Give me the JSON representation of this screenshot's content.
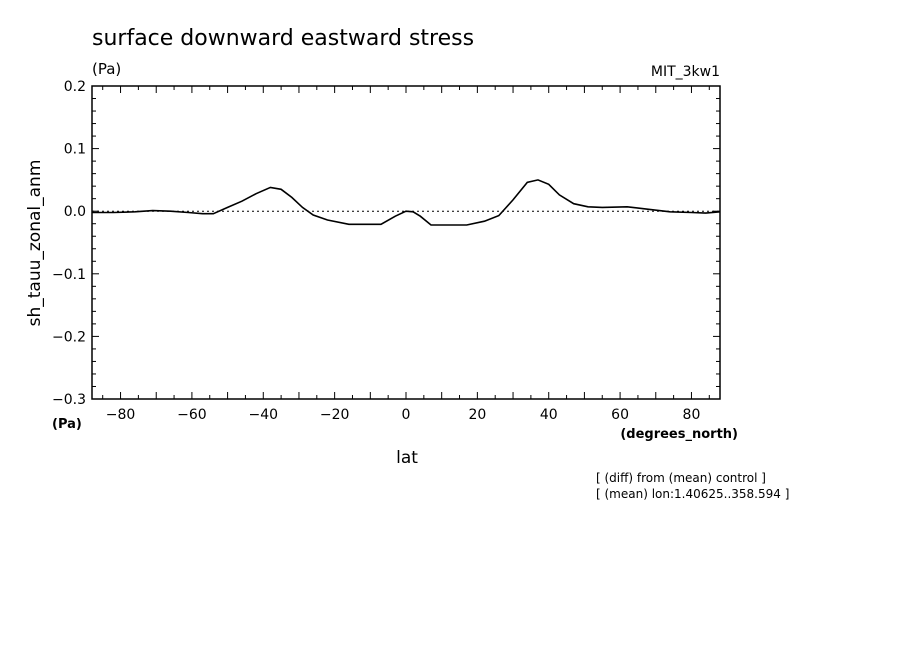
{
  "chart_data": {
    "type": "line",
    "title": "surface downward eastward stress",
    "subtitle_units": "(Pa)",
    "model_label": "MIT_3kw1",
    "ylabel": "sh_tauu_zonal_anm",
    "y_units": "(Pa)",
    "xlabel": "lat",
    "x_units": "(degrees_north)",
    "xlim": [
      -88,
      88
    ],
    "ylim": [
      -0.3,
      0.2
    ],
    "x_ticks": [
      -80,
      -60,
      -40,
      -20,
      0,
      20,
      40,
      60,
      80
    ],
    "x_tick_labels": [
      "−80",
      "−60",
      "−40",
      "−20",
      "0",
      "20",
      "40",
      "60",
      "80"
    ],
    "y_ticks": [
      0.2,
      0.1,
      0.0,
      -0.1,
      -0.2,
      -0.3
    ],
    "y_tick_labels": [
      "0.2",
      "0.1",
      "0.0",
      "−0.1",
      "−0.2",
      "−0.3"
    ],
    "grid": false,
    "annotations": [
      "[ (diff) from (mean) control ]",
      "[ (mean) lon:1.40625..358.594 ]"
    ],
    "series": [
      {
        "x": [
          -88,
          -82,
          -76,
          -71,
          -66,
          -61,
          -57,
          -54,
          -50,
          -46,
          -42,
          -38,
          -35,
          -32,
          -29,
          -26,
          -22,
          -16,
          -11,
          -7,
          -3,
          0,
          2,
          4,
          7,
          12,
          17,
          22,
          26,
          30,
          34,
          37,
          40,
          43,
          47,
          51,
          55,
          62,
          68,
          74,
          80,
          84,
          88
        ],
        "y": [
          -0.002,
          -0.002,
          -0.001,
          0.001,
          0.0,
          -0.002,
          -0.004,
          -0.004,
          0.006,
          0.016,
          0.028,
          0.038,
          0.035,
          0.022,
          0.006,
          -0.006,
          -0.014,
          -0.021,
          -0.021,
          -0.021,
          -0.008,
          0.0,
          -0.001,
          -0.008,
          -0.022,
          -0.022,
          -0.022,
          -0.016,
          -0.007,
          0.018,
          0.046,
          0.05,
          0.043,
          0.026,
          0.012,
          0.007,
          0.006,
          0.007,
          0.003,
          -0.001,
          -0.002,
          -0.003,
          -0.001
        ]
      }
    ]
  }
}
